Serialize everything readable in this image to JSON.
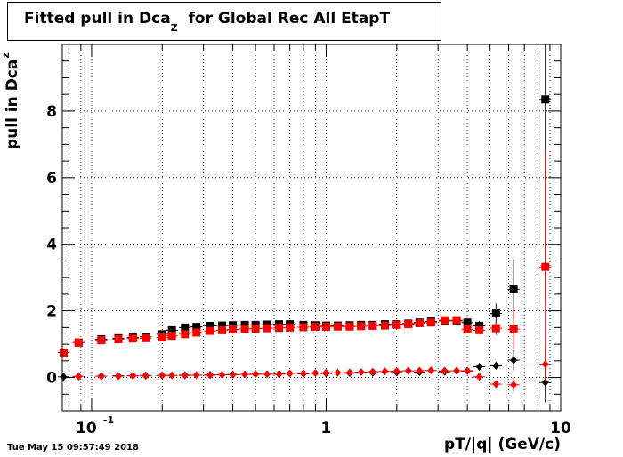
{
  "chart_data": {
    "type": "scatter",
    "title_main": "Fitted pull in Dca",
    "title_sub": "Z",
    "title_rest": "for Global Rec All EtapT",
    "xlabel": "pT/|q| (GeV/c)",
    "ylabel_main": "pull in Dca",
    "ylabel_sub": "z",
    "timestamp": "Tue May 15 09:57:49 2018",
    "xscale": "log",
    "xlim": [
      0.075,
      10
    ],
    "ylim": [
      -1,
      10
    ],
    "grid": true,
    "x_ticks": [
      {
        "value": 0.1,
        "label": "10",
        "exp": "-1"
      },
      {
        "value": 1,
        "label": "1",
        "exp": ""
      },
      {
        "value": 10,
        "label": "10",
        "exp": ""
      }
    ],
    "y_ticks": [
      0,
      2,
      4,
      6,
      8
    ],
    "series": [
      {
        "marker": "square",
        "color": "#000000",
        "x": [
          0.076,
          0.088,
          0.11,
          0.13,
          0.15,
          0.17,
          0.2,
          0.22,
          0.25,
          0.28,
          0.32,
          0.36,
          0.4,
          0.45,
          0.5,
          0.56,
          0.63,
          0.7,
          0.8,
          0.9,
          1.0,
          1.12,
          1.26,
          1.41,
          1.58,
          1.78,
          2.0,
          2.24,
          2.5,
          2.8,
          3.2,
          3.6,
          4.0,
          4.5,
          5.3,
          6.3,
          8.6
        ],
        "y": [
          0.75,
          1.05,
          1.15,
          1.18,
          1.2,
          1.22,
          1.3,
          1.42,
          1.5,
          1.52,
          1.55,
          1.56,
          1.57,
          1.58,
          1.58,
          1.59,
          1.6,
          1.6,
          1.58,
          1.57,
          1.56,
          1.56,
          1.57,
          1.58,
          1.58,
          1.6,
          1.6,
          1.62,
          1.65,
          1.68,
          1.7,
          1.7,
          1.65,
          1.55,
          1.92,
          2.65,
          8.35
        ],
        "yerr": [
          0.1,
          0.05,
          0.05,
          0.04,
          0.04,
          0.04,
          0.03,
          0.03,
          0.03,
          0.03,
          0.03,
          0.03,
          0.03,
          0.03,
          0.03,
          0.03,
          0.03,
          0.03,
          0.03,
          0.03,
          0.03,
          0.03,
          0.03,
          0.03,
          0.03,
          0.03,
          0.03,
          0.03,
          0.04,
          0.05,
          0.05,
          0.08,
          0.1,
          0.15,
          0.3,
          0.9,
          6.0
        ]
      },
      {
        "marker": "square",
        "color": "#ff0000",
        "x": [
          0.076,
          0.088,
          0.11,
          0.13,
          0.15,
          0.17,
          0.2,
          0.22,
          0.25,
          0.28,
          0.32,
          0.36,
          0.4,
          0.45,
          0.5,
          0.56,
          0.63,
          0.7,
          0.8,
          0.9,
          1.0,
          1.12,
          1.26,
          1.41,
          1.58,
          1.78,
          2.0,
          2.24,
          2.5,
          2.8,
          3.2,
          3.6,
          4.0,
          4.5,
          5.3,
          6.3,
          8.6
        ],
        "y": [
          0.75,
          1.05,
          1.12,
          1.15,
          1.17,
          1.18,
          1.2,
          1.25,
          1.3,
          1.35,
          1.4,
          1.42,
          1.44,
          1.46,
          1.47,
          1.48,
          1.49,
          1.5,
          1.51,
          1.52,
          1.52,
          1.53,
          1.53,
          1.54,
          1.55,
          1.56,
          1.58,
          1.6,
          1.63,
          1.65,
          1.72,
          1.72,
          1.45,
          1.42,
          1.48,
          1.45,
          3.32
        ],
        "yerr": [
          0.1,
          0.05,
          0.05,
          0.04,
          0.04,
          0.04,
          0.03,
          0.03,
          0.03,
          0.03,
          0.03,
          0.03,
          0.03,
          0.03,
          0.03,
          0.03,
          0.03,
          0.03,
          0.03,
          0.03,
          0.03,
          0.03,
          0.03,
          0.03,
          0.03,
          0.03,
          0.03,
          0.03,
          0.04,
          0.05,
          0.05,
          0.08,
          0.1,
          0.12,
          0.2,
          0.6,
          3.5
        ]
      },
      {
        "marker": "diamond",
        "color": "#000000",
        "x": [
          0.076,
          0.088,
          0.11,
          0.13,
          0.15,
          0.17,
          0.2,
          0.25,
          0.32,
          0.4,
          0.5,
          0.63,
          0.8,
          1.0,
          1.26,
          1.58,
          2.0,
          2.5,
          3.2,
          4.0,
          4.5,
          5.3,
          6.3,
          8.6
        ],
        "y": [
          0.02,
          0.03,
          0.04,
          0.05,
          0.05,
          0.06,
          0.06,
          0.07,
          0.08,
          0.09,
          0.1,
          0.1,
          0.11,
          0.12,
          0.13,
          0.14,
          0.15,
          0.16,
          0.17,
          0.2,
          0.32,
          0.35,
          0.52,
          -0.15
        ],
        "yerr": [
          0.03,
          0.02,
          0.02,
          0.02,
          0.02,
          0.02,
          0.02,
          0.02,
          0.02,
          0.02,
          0.02,
          0.02,
          0.02,
          0.02,
          0.02,
          0.02,
          0.02,
          0.02,
          0.03,
          0.05,
          0.08,
          0.1,
          0.3,
          0.6
        ]
      },
      {
        "marker": "diamond",
        "color": "#ff0000",
        "x": [
          0.088,
          0.11,
          0.13,
          0.15,
          0.17,
          0.2,
          0.22,
          0.25,
          0.28,
          0.32,
          0.36,
          0.4,
          0.45,
          0.5,
          0.56,
          0.63,
          0.7,
          0.8,
          0.9,
          1.0,
          1.12,
          1.26,
          1.41,
          1.58,
          1.78,
          2.0,
          2.24,
          2.5,
          2.8,
          3.2,
          3.6,
          4.0,
          4.5,
          5.3,
          6.3,
          8.6
        ],
        "y": [
          0.03,
          0.04,
          0.04,
          0.05,
          0.05,
          0.06,
          0.06,
          0.06,
          0.07,
          0.07,
          0.08,
          0.08,
          0.09,
          0.1,
          0.1,
          0.11,
          0.12,
          0.12,
          0.13,
          0.14,
          0.14,
          0.15,
          0.16,
          0.17,
          0.18,
          0.19,
          0.2,
          0.2,
          0.21,
          0.2,
          0.2,
          0.19,
          0.02,
          -0.2,
          -0.22,
          0.4
        ],
        "yerr": [
          0.02,
          0.02,
          0.02,
          0.02,
          0.02,
          0.02,
          0.02,
          0.02,
          0.02,
          0.02,
          0.02,
          0.02,
          0.02,
          0.02,
          0.02,
          0.02,
          0.02,
          0.02,
          0.02,
          0.02,
          0.02,
          0.02,
          0.02,
          0.02,
          0.02,
          0.02,
          0.02,
          0.02,
          0.03,
          0.03,
          0.04,
          0.05,
          0.06,
          0.1,
          0.2,
          0.5
        ]
      }
    ]
  }
}
